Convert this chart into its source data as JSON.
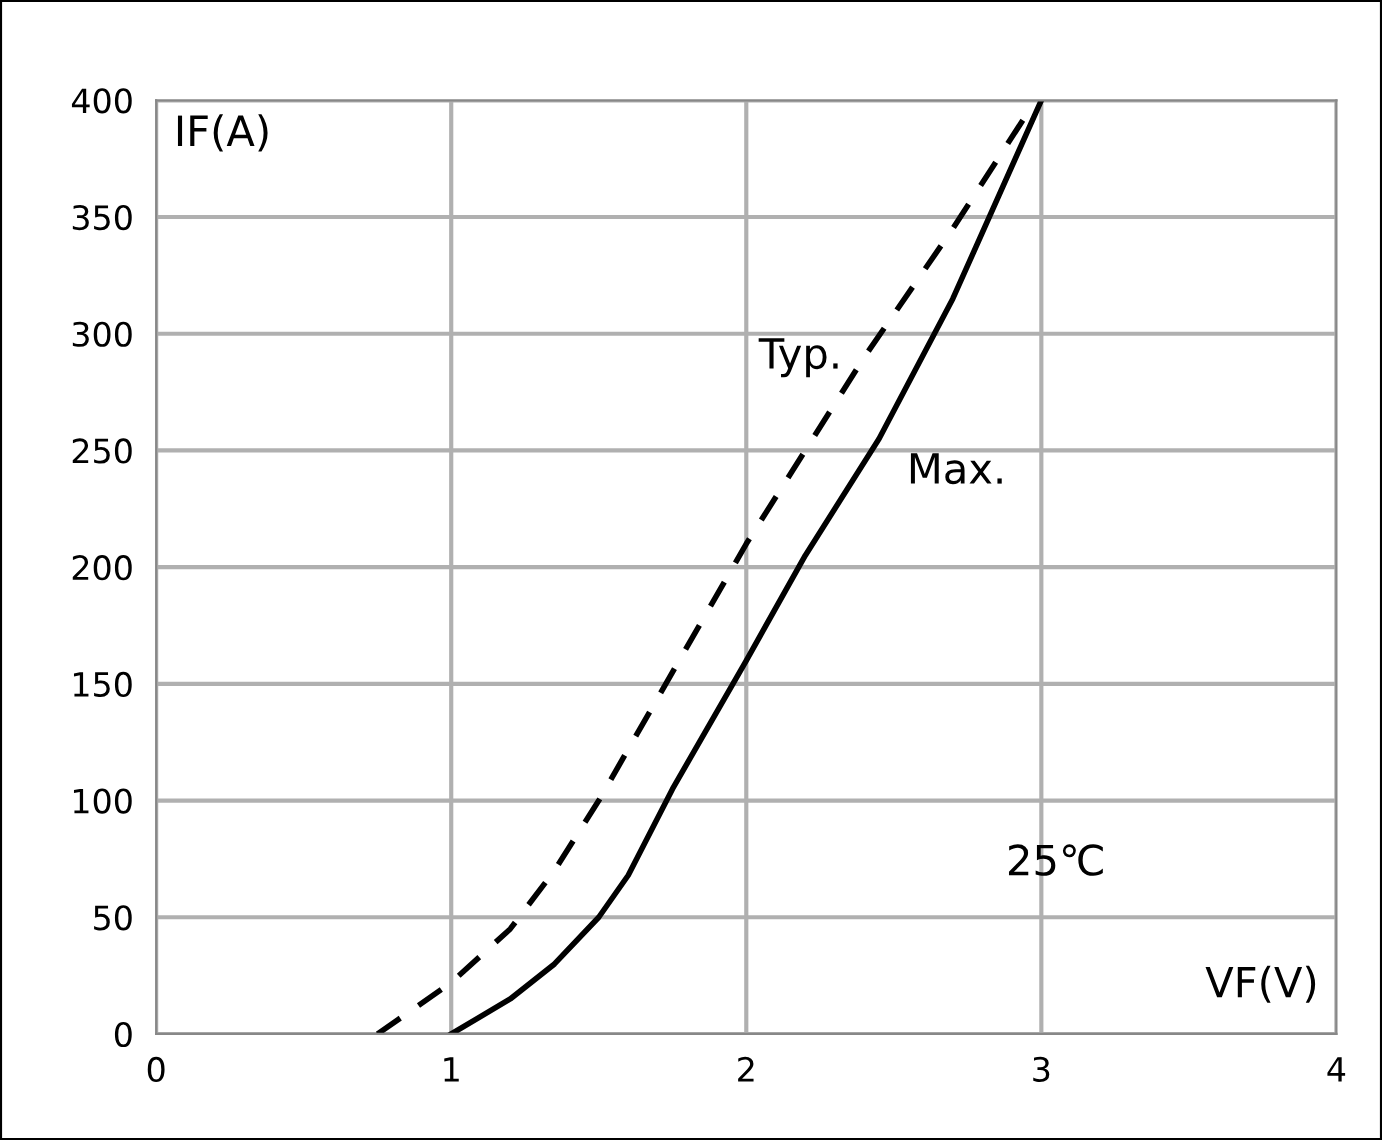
{
  "chart_data": {
    "type": "line",
    "xlabel": "VF(V)",
    "ylabel": "IF(A)",
    "xlim": [
      0,
      4
    ],
    "ylim": [
      0,
      400
    ],
    "xticks": [
      0,
      1,
      2,
      3,
      4
    ],
    "yticks": [
      0,
      50,
      100,
      150,
      200,
      250,
      300,
      350,
      400
    ],
    "grid": true,
    "marker": "none",
    "series": [
      {
        "name": "Typ.",
        "color": "#000000",
        "line_style": "dashed",
        "x": [
          0.75,
          1.0,
          1.2,
          1.35,
          1.5,
          1.75,
          2.0,
          2.4,
          2.7,
          2.94
        ],
        "values": [
          0,
          22,
          45,
          70,
          100,
          155,
          210,
          290,
          345,
          392
        ]
      },
      {
        "name": "Max.",
        "color": "#000000",
        "line_style": "solid",
        "x": [
          1.0,
          1.2,
          1.35,
          1.5,
          1.6,
          1.75,
          2.0,
          2.2,
          2.45,
          2.7,
          3.0
        ],
        "values": [
          0,
          15,
          30,
          50,
          68,
          105,
          160,
          205,
          255,
          315,
          400
        ]
      }
    ],
    "annotations": [
      "25℃"
    ]
  }
}
